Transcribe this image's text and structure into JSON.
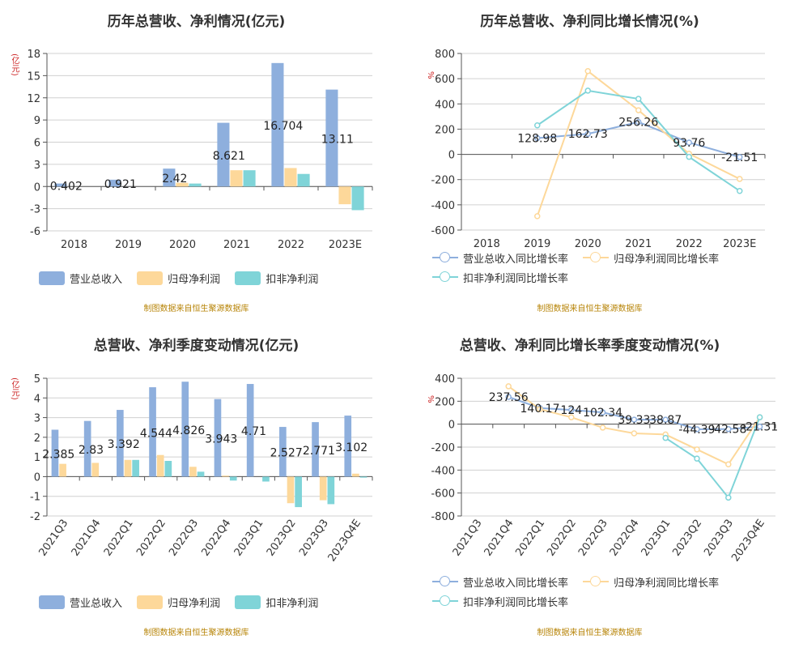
{
  "colors": {
    "rev": "#8EAFDD",
    "np": "#FDD89A",
    "dnp": "#7FD4D8",
    "grid": "#d0d0d0",
    "axis": "#555555"
  },
  "legend_bar": [
    "营业总收入",
    "归母净利润",
    "扣非净利润"
  ],
  "legend_line": [
    "营业总收入同比增长率",
    "归母净利润同比增长率",
    "扣非净利润同比增长率"
  ],
  "source": "制图数据来自恒生聚源数据库",
  "unit_yi": "(亿元)",
  "unit_pct": "%",
  "chart_data": [
    {
      "type": "bar",
      "title": "历年总营收、净利情况(亿元)",
      "categories": [
        "2018",
        "2019",
        "2020",
        "2021",
        "2022",
        "2023E"
      ],
      "ylim": [
        -6,
        18
      ],
      "yticks": [
        -6,
        -3,
        0,
        3,
        6,
        9,
        12,
        15,
        18
      ],
      "series": [
        {
          "name": "营业总收入",
          "values": [
            0.402,
            0.921,
            2.42,
            8.621,
            16.704,
            13.11
          ]
        },
        {
          "name": "归母净利润",
          "values": [
            0.0,
            0.0,
            0.5,
            2.2,
            2.5,
            -2.4
          ]
        },
        {
          "name": "扣非净利润",
          "values": [
            0.0,
            0.0,
            0.4,
            2.2,
            1.7,
            -3.2
          ]
        }
      ],
      "labels": [
        "0.402",
        "0.921",
        "2.42",
        "8.621",
        "16.704",
        "13.11"
      ]
    },
    {
      "type": "line",
      "title": "历年总营收、净利同比增长情况(%)",
      "categories": [
        "2018",
        "2019",
        "2020",
        "2021",
        "2022",
        "2023E"
      ],
      "ylim": [
        -600,
        800
      ],
      "yticks": [
        -600,
        -400,
        -200,
        0,
        200,
        400,
        600,
        800
      ],
      "series": [
        {
          "name": "营业总收入同比增长率",
          "values": [
            null,
            128.98,
            162.73,
            256.26,
            93.76,
            -21.51
          ]
        },
        {
          "name": "归母净利润同比增长率",
          "values": [
            null,
            -490,
            660,
            350,
            5,
            -195
          ]
        },
        {
          "name": "扣非净利润同比增长率",
          "values": [
            null,
            230,
            505,
            440,
            -20,
            -290
          ]
        }
      ],
      "labels": [
        "",
        "128.98",
        "162.73",
        "256.26",
        "93.76",
        "-21.51"
      ]
    },
    {
      "type": "bar",
      "title": "总营收、净利季度变动情况(亿元)",
      "categories": [
        "2021Q3",
        "2021Q4",
        "2022Q1",
        "2022Q2",
        "2022Q3",
        "2022Q4",
        "2023Q1",
        "2023Q2",
        "2023Q3",
        "2023Q4E"
      ],
      "ylim": [
        -2,
        5
      ],
      "yticks": [
        -2,
        -1,
        0,
        1,
        2,
        3,
        4,
        5
      ],
      "series": [
        {
          "name": "营业总收入",
          "values": [
            2.385,
            2.83,
            3.392,
            4.544,
            4.826,
            3.943,
            4.71,
            2.527,
            2.771,
            3.102
          ]
        },
        {
          "name": "归母净利润",
          "values": [
            0.65,
            0.7,
            0.85,
            1.1,
            0.5,
            0.05,
            0.0,
            -1.35,
            -1.2,
            0.15
          ]
        },
        {
          "name": "扣非净利润",
          "values": [
            0.0,
            0.0,
            0.85,
            0.8,
            0.25,
            -0.2,
            -0.25,
            -1.55,
            -1.4,
            -0.05
          ]
        }
      ],
      "labels": [
        "2.385",
        "2.83",
        "3.392",
        "4.544",
        "4.826",
        "3.943",
        "4.71",
        "2.527",
        "2.771",
        "3.102"
      ]
    },
    {
      "type": "line",
      "title": "总营收、净利同比增长率季度变动情况(%)",
      "categories": [
        "2021Q3",
        "2021Q4",
        "2022Q1",
        "2022Q2",
        "2022Q3",
        "2022Q4",
        "2023Q1",
        "2023Q2",
        "2023Q3",
        "2023Q4E"
      ],
      "ylim": [
        -800,
        400
      ],
      "yticks": [
        -800,
        -600,
        -400,
        -200,
        0,
        200,
        400
      ],
      "series": [
        {
          "name": "营业总收入同比增长率",
          "values": [
            null,
            237.56,
            140.17,
            124,
            102.34,
            39.33,
            38.87,
            -44.39,
            -42.58,
            -21.31
          ]
        },
        {
          "name": "归母净利润同比增长率",
          "values": [
            null,
            330,
            130,
            60,
            -30,
            -80,
            -90,
            -220,
            -350,
            60
          ]
        },
        {
          "name": "扣非净利润同比增长率",
          "values": [
            null,
            null,
            null,
            null,
            null,
            null,
            -120,
            -300,
            -640,
            60
          ]
        }
      ],
      "labels": [
        "",
        "237.56",
        "140.17",
        "124",
        "102.34",
        "39.33",
        "38.87",
        "-44.39",
        "-42.58",
        "-21.31"
      ]
    }
  ]
}
